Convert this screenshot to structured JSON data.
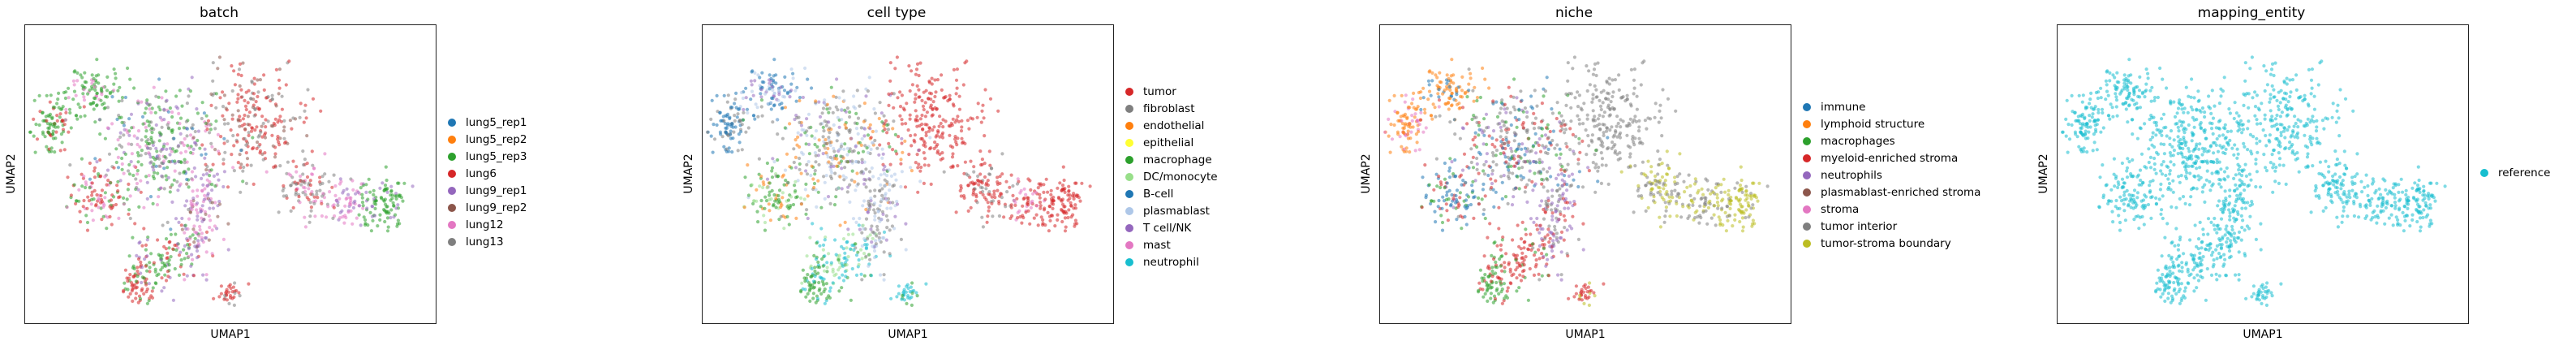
{
  "chart_data": [
    {
      "type": "scatter",
      "title": "batch",
      "xlabel": "UMAP1",
      "ylabel": "UMAP2",
      "legend_position": "right",
      "series": [
        {
          "name": "lung5_rep1",
          "color": "#1f77b4"
        },
        {
          "name": "lung5_rep2",
          "color": "#ff7f0e"
        },
        {
          "name": "lung5_rep3",
          "color": "#2ca02c"
        },
        {
          "name": "lung6",
          "color": "#d62728"
        },
        {
          "name": "lung9_rep1",
          "color": "#9467bd"
        },
        {
          "name": "lung9_rep2",
          "color": "#8c564b"
        },
        {
          "name": "lung12",
          "color": "#e377c2"
        },
        {
          "name": "lung13",
          "color": "#7f7f7f"
        }
      ]
    },
    {
      "type": "scatter",
      "title": "cell type",
      "xlabel": "UMAP1",
      "ylabel": "UMAP2",
      "legend_position": "right",
      "series": [
        {
          "name": "tumor",
          "color": "#d62728"
        },
        {
          "name": "fibroblast",
          "color": "#7f7f7f"
        },
        {
          "name": "endothelial",
          "color": "#ff7f0e"
        },
        {
          "name": "epithelial",
          "color": "#ffff33"
        },
        {
          "name": "macrophage",
          "color": "#2ca02c"
        },
        {
          "name": "DC/monocyte",
          "color": "#98df8a"
        },
        {
          "name": "B-cell",
          "color": "#1f77b4"
        },
        {
          "name": "plasmablast",
          "color": "#aec7e8"
        },
        {
          "name": "T cell/NK",
          "color": "#9467bd"
        },
        {
          "name": "mast",
          "color": "#e377c2"
        },
        {
          "name": "neutrophil",
          "color": "#17becf"
        }
      ]
    },
    {
      "type": "scatter",
      "title": "niche",
      "xlabel": "UMAP1",
      "ylabel": "UMAP2",
      "legend_position": "right",
      "series": [
        {
          "name": "immune",
          "color": "#1f77b4"
        },
        {
          "name": "lymphoid structure",
          "color": "#ff7f0e"
        },
        {
          "name": "macrophages",
          "color": "#2ca02c"
        },
        {
          "name": "myeloid-enriched stroma",
          "color": "#d62728"
        },
        {
          "name": "neutrophils",
          "color": "#9467bd"
        },
        {
          "name": "plasmablast-enriched stroma",
          "color": "#8c564b"
        },
        {
          "name": "stroma",
          "color": "#e377c2"
        },
        {
          "name": "tumor interior",
          "color": "#7f7f7f"
        },
        {
          "name": "tumor-stroma boundary",
          "color": "#bcbd22"
        }
      ]
    },
    {
      "type": "scatter",
      "title": "mapping_entity",
      "xlabel": "UMAP1",
      "ylabel": "UMAP2",
      "legend_position": "right",
      "series": [
        {
          "name": "reference",
          "color": "#17becf"
        }
      ]
    }
  ]
}
